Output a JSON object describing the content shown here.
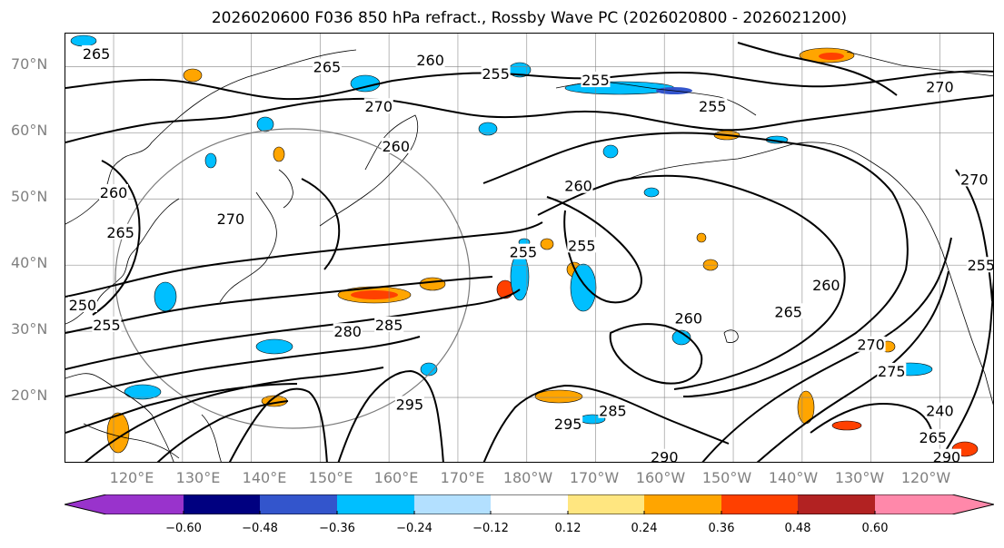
{
  "title": "2026020600 F036 850 hPa refract., Rossby Wave PC (2026020800 - 2026021200)",
  "latitude_labels": [
    "70°N",
    "60°N",
    "50°N",
    "40°N",
    "30°N",
    "20°N"
  ],
  "longitude_labels": [
    "120°E",
    "130°E",
    "140°E",
    "150°E",
    "160°E",
    "170°E",
    "180°W",
    "170°W",
    "160°W",
    "150°W",
    "140°W",
    "130°W",
    "120°W"
  ],
  "map": {
    "projection": "cylindrical",
    "lon_range": [
      113,
      248
    ],
    "lat_range": [
      10,
      75
    ],
    "coastline_color": "#000000",
    "gridline_color": "#808080"
  },
  "contour_labels": [
    {
      "text": "265",
      "lon": 117.5,
      "lat": 72
    },
    {
      "text": "265",
      "lon": 151,
      "lat": 70
    },
    {
      "text": "260",
      "lon": 166,
      "lat": 71
    },
    {
      "text": "255",
      "lon": 175.5,
      "lat": 69
    },
    {
      "text": "255",
      "lon": 190,
      "lat": 68
    },
    {
      "text": "270",
      "lon": 158.5,
      "lat": 64
    },
    {
      "text": "260",
      "lon": 161,
      "lat": 58
    },
    {
      "text": "255",
      "lon": 207,
      "lat": 64
    },
    {
      "text": "270",
      "lon": 240,
      "lat": 67
    },
    {
      "text": "260",
      "lon": 120,
      "lat": 51
    },
    {
      "text": "260",
      "lon": 187.5,
      "lat": 52
    },
    {
      "text": "265",
      "lon": 121,
      "lat": 45
    },
    {
      "text": "270",
      "lon": 137,
      "lat": 47
    },
    {
      "text": "255",
      "lon": 188,
      "lat": 43
    },
    {
      "text": "255",
      "lon": 179.5,
      "lat": 42
    },
    {
      "text": "260",
      "lon": 223.5,
      "lat": 37
    },
    {
      "text": "260",
      "lon": 203.5,
      "lat": 32
    },
    {
      "text": "265",
      "lon": 218,
      "lat": 33
    },
    {
      "text": "250",
      "lon": 115.5,
      "lat": 34
    },
    {
      "text": "255",
      "lon": 119,
      "lat": 31
    },
    {
      "text": "280",
      "lon": 154,
      "lat": 30
    },
    {
      "text": "285",
      "lon": 160,
      "lat": 31
    },
    {
      "text": "285",
      "lon": 192.5,
      "lat": 18
    },
    {
      "text": "295",
      "lon": 186,
      "lat": 16
    },
    {
      "text": "295",
      "lon": 163,
      "lat": 19
    },
    {
      "text": "290",
      "lon": 200,
      "lat": 11
    },
    {
      "text": "270",
      "lon": 230,
      "lat": 28
    },
    {
      "text": "275",
      "lon": 233,
      "lat": 24
    },
    {
      "text": "240",
      "lon": 240,
      "lat": 18
    },
    {
      "text": "265",
      "lon": 239,
      "lat": 14
    },
    {
      "text": "290",
      "lon": 241,
      "lat": 11
    },
    {
      "text": "270",
      "lon": 245,
      "lat": 53
    },
    {
      "text": "255",
      "lon": 246,
      "lat": 40
    }
  ],
  "colorbar": {
    "tick_labels": [
      "−0.60",
      "−0.48",
      "−0.36",
      "−0.24",
      "−0.12",
      "0.12",
      "0.24",
      "0.36",
      "0.48",
      "0.60"
    ],
    "colors": [
      "#9933cc",
      "#000080",
      "#3355cc",
      "#00bfff",
      "#b3e0ff",
      "#ffffff",
      "#ffe680",
      "#ffa500",
      "#ff4000",
      "#b22222",
      "#ff88aa",
      "#ff88aa"
    ],
    "extend_colors": {
      "min": "#9933cc",
      "max": "#ff88aa"
    }
  }
}
